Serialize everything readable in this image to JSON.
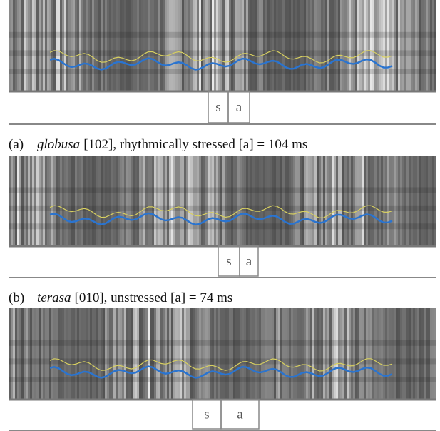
{
  "panels": [
    {
      "segments": [
        "s",
        "a"
      ],
      "caption": {
        "label": "(a)",
        "word": "globusa",
        "rest": "[102], rhythmically stressed [a] = 104 ms"
      }
    },
    {
      "segments": [
        "s",
        "a"
      ],
      "caption": {
        "label": "(b)",
        "word": "terasa",
        "rest": "[010], unstressed [a] = 74 ms"
      }
    },
    {
      "segments": [
        "s",
        "a"
      ]
    }
  ]
}
